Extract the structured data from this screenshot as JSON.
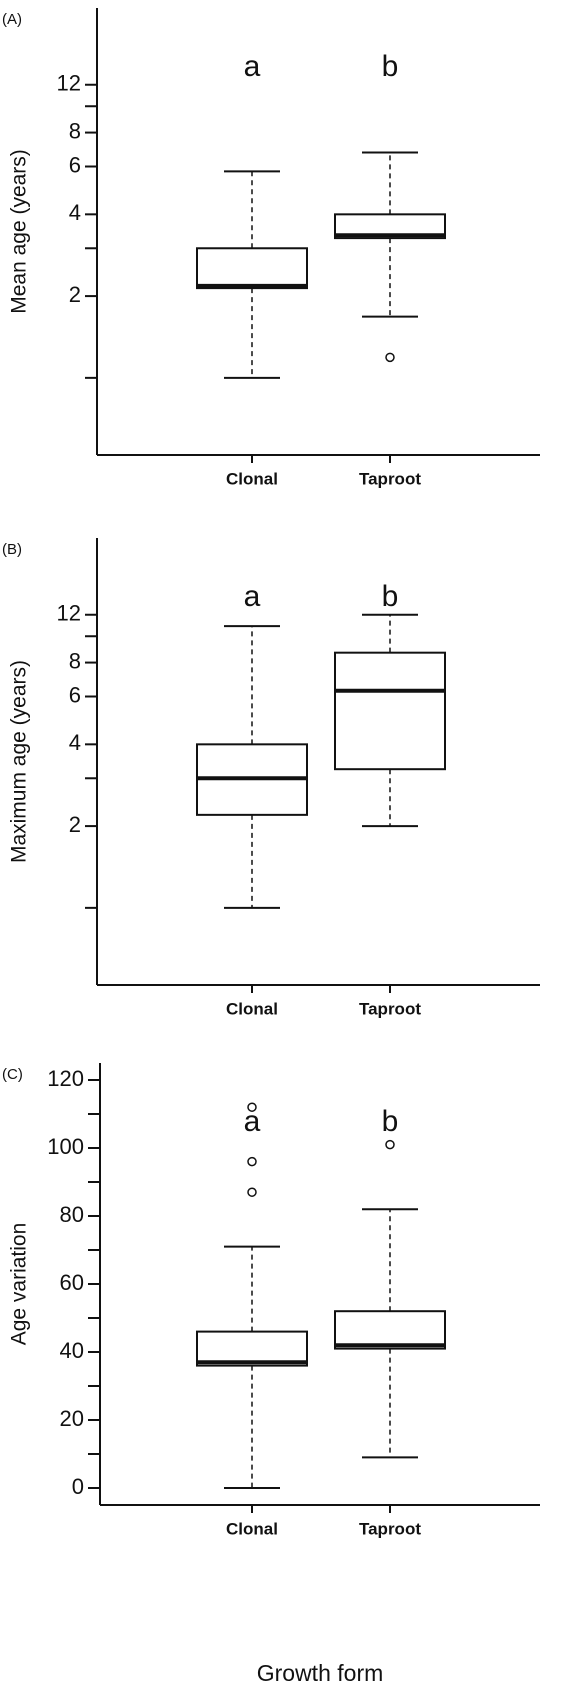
{
  "chart_data": [
    {
      "type": "box",
      "panel_label": "(A)",
      "y_label": "Mean age (years)",
      "yscale": "log",
      "categories": [
        "Clonal",
        "Taproot"
      ],
      "annotations": [
        "a",
        "b"
      ],
      "boxes": [
        {
          "min": 1.0,
          "q1": 2.14,
          "median": 2.18,
          "q3": 3.0,
          "max": 5.76,
          "outliers": []
        },
        {
          "min": 1.68,
          "q1": 3.27,
          "median": 3.35,
          "q3": 4.0,
          "max": 6.76,
          "outliers": [
            1.19
          ]
        }
      ],
      "ylim": [
        0.52,
        23
      ],
      "yticks": [
        2,
        4,
        6,
        8,
        12
      ],
      "minor_yticks": [
        1,
        3,
        10
      ]
    },
    {
      "type": "box",
      "panel_label": "(B)",
      "y_label": "Maximum age (years)",
      "yscale": "log",
      "categories": [
        "Clonal",
        "Taproot"
      ],
      "annotations": [
        "a",
        "b"
      ],
      "boxes": [
        {
          "min": 1.0,
          "q1": 2.2,
          "median": 3.0,
          "q3": 4.0,
          "max": 10.9,
          "outliers": []
        },
        {
          "min": 2.0,
          "q1": 3.24,
          "median": 6.3,
          "q3": 8.7,
          "max": 12,
          "outliers": []
        }
      ],
      "ylim": [
        0.52,
        23
      ],
      "yticks": [
        2,
        4,
        6,
        8,
        12
      ],
      "minor_yticks": [
        1,
        3,
        10
      ]
    },
    {
      "type": "box",
      "panel_label": "(C)",
      "y_label": "Age variation",
      "x_label": "Growth form",
      "yscale": "linear",
      "categories": [
        "Clonal",
        "Taproot"
      ],
      "annotations": [
        "a",
        "b"
      ],
      "boxes": [
        {
          "min": 0,
          "q1": 36,
          "median": 37,
          "q3": 46,
          "max": 71,
          "outliers": [
            87,
            96,
            112
          ]
        },
        {
          "min": 9,
          "q1": 41,
          "median": 42,
          "q3": 52,
          "max": 82,
          "outliers": [
            101
          ]
        }
      ],
      "ylim": [
        -5,
        125
      ],
      "yticks": [
        0,
        20,
        40,
        60,
        80,
        100,
        120
      ],
      "minor_yticks": [
        10,
        30,
        50,
        70,
        90,
        110
      ]
    }
  ]
}
